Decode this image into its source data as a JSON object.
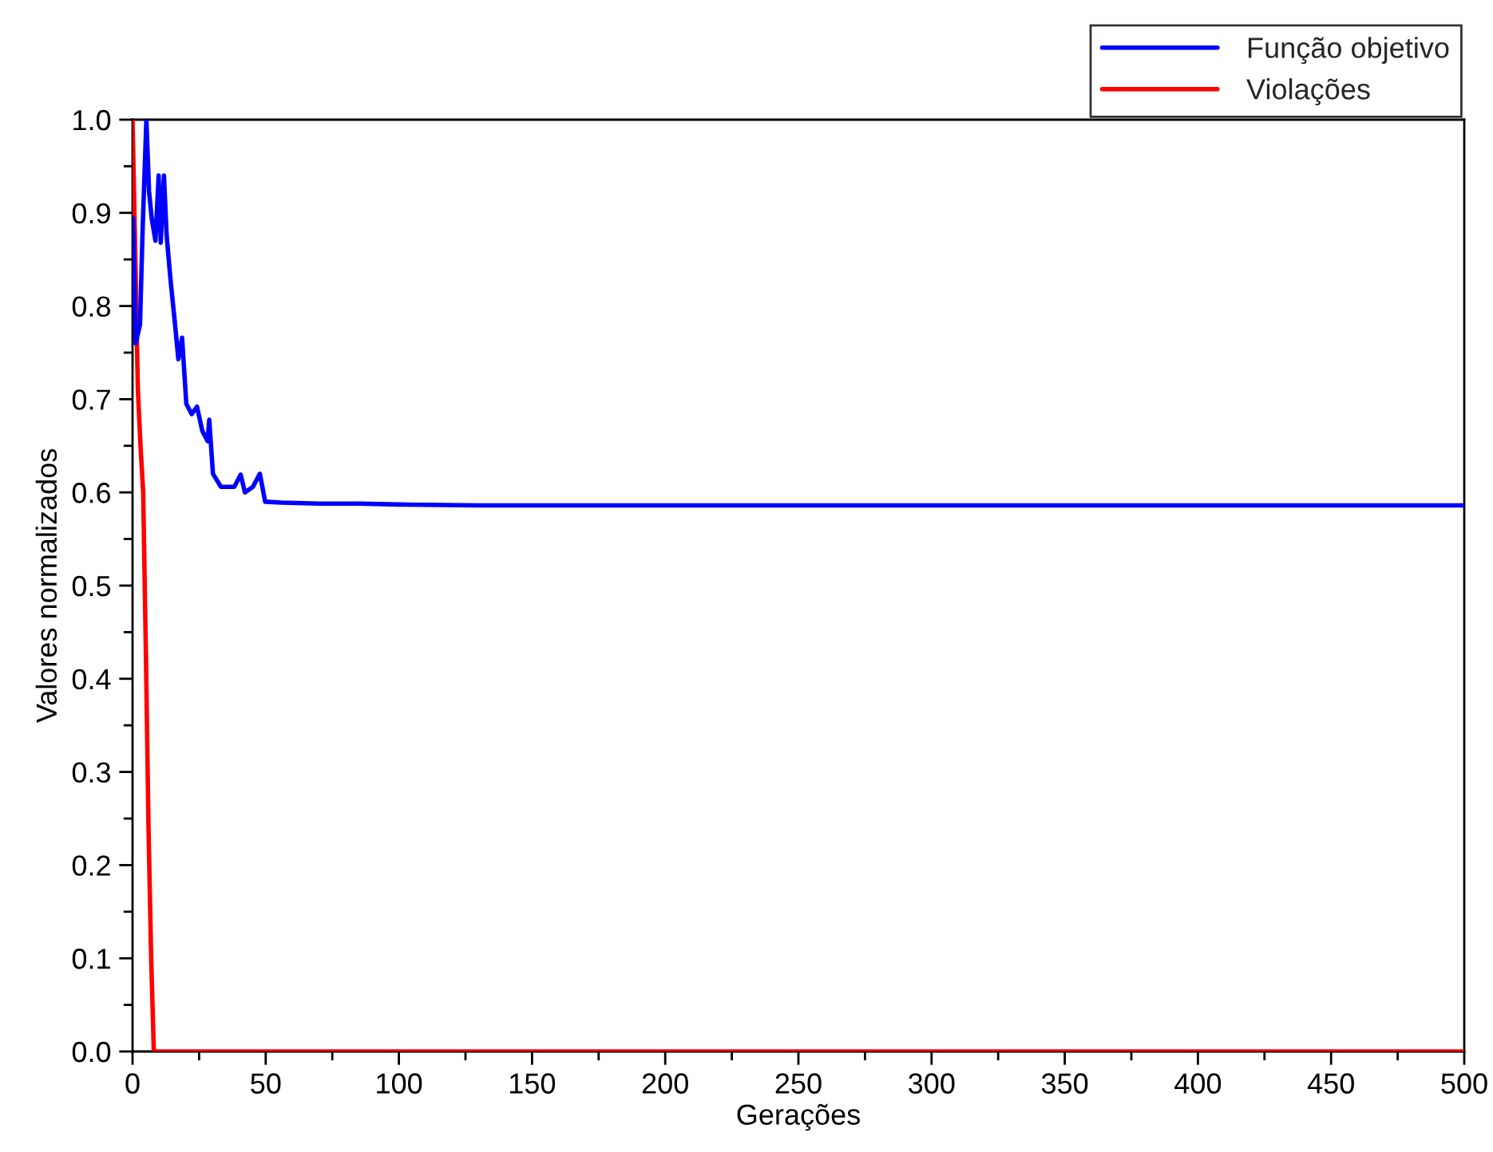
{
  "chart_data": {
    "type": "line",
    "xlabel": "Gerações",
    "ylabel": "Valores normalizados",
    "xlim": [
      0,
      500
    ],
    "xticks": [
      0,
      50,
      100,
      150,
      200,
      250,
      300,
      350,
      400,
      450,
      500
    ],
    "ylim": [
      0.0,
      1.0
    ],
    "yticks": [
      {
        "value": 0,
        "label": "0.0"
      },
      0.1,
      0.2,
      0.3,
      0.4,
      0.5,
      0.6,
      0.7,
      0.8,
      0.9,
      {
        "value": 1,
        "label": "1.0"
      }
    ],
    "grid": false,
    "legend": "top right",
    "marker": "none",
    "line_style": "solid",
    "series": [
      {
        "name": "Função objetivo",
        "color": "#0000ff",
        "x": [
          0.2,
          0.4,
          1.2,
          2.8,
          3.8,
          5.2,
          6.2,
          7.2,
          8.6,
          9.8,
          10.6,
          11.8,
          12.8,
          14.2,
          15.8,
          17.2,
          18.6,
          20.2,
          22.2,
          24.2,
          26.2,
          28.2,
          28.8,
          30.2,
          33.2,
          38.2,
          40.6,
          42.2,
          45.2,
          47.8,
          49.8,
          56,
          70,
          85,
          100,
          130,
          500
        ],
        "values": [
          0.894,
          0.86,
          0.76,
          0.78,
          0.883,
          1.0,
          0.923,
          0.894,
          0.87,
          0.94,
          0.868,
          0.94,
          0.876,
          0.83,
          0.785,
          0.743,
          0.766,
          0.695,
          0.684,
          0.692,
          0.666,
          0.655,
          0.678,
          0.62,
          0.606,
          0.606,
          0.619,
          0.6,
          0.606,
          0.62,
          0.59,
          0.589,
          0.588,
          0.588,
          0.587,
          0.586,
          0.586
        ]
      },
      {
        "name": "Violações",
        "color": "#ff0000",
        "x": [
          0,
          1,
          2,
          3,
          4,
          5,
          6,
          7,
          8,
          500
        ],
        "values": [
          1.0,
          0.86,
          0.71,
          0.65,
          0.6,
          0.43,
          0.24,
          0.1,
          0.0,
          0.0
        ]
      }
    ]
  }
}
